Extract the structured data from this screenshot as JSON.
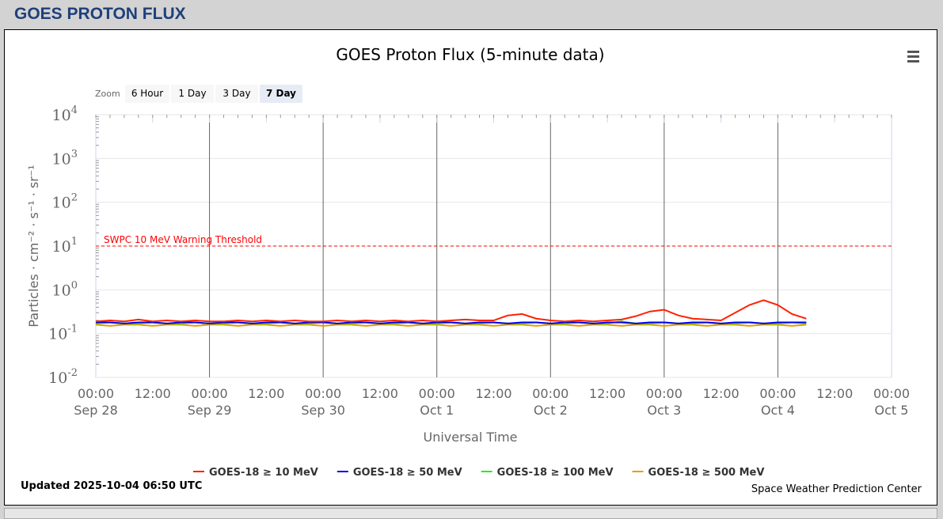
{
  "header": {
    "title": "GOES PROTON FLUX"
  },
  "zoom": {
    "label": "Zoom",
    "buttons": [
      "6 Hour",
      "1 Day",
      "3 Day",
      "7 Day"
    ],
    "selected": "7 Day"
  },
  "menu_icon": "hamburger-menu-icon",
  "footer": {
    "updated": "Updated 2025-10-04 06:50 UTC",
    "credit": "Space Weather Prediction Center"
  },
  "chart_data": {
    "type": "line",
    "title": "GOES Proton Flux (5-minute data)",
    "xlabel": "Universal Time",
    "ylabel": "Particles · cm⁻² · s⁻¹ · sr⁻¹",
    "yscale": "log",
    "ylim": [
      0.01,
      10000
    ],
    "xlim": [
      "2025-09-28 00:00",
      "2025-10-05 00:00"
    ],
    "yticks": [
      {
        "base": "10",
        "exp": "4"
      },
      {
        "base": "10",
        "exp": "3"
      },
      {
        "base": "10",
        "exp": "2"
      },
      {
        "base": "10",
        "exp": "1"
      },
      {
        "base": "10",
        "exp": "0"
      },
      {
        "base": "10",
        "exp": "-1"
      },
      {
        "base": "10",
        "exp": "-2"
      }
    ],
    "xticks": [
      [
        "00:00",
        "Sep 28"
      ],
      [
        "12:00",
        ""
      ],
      [
        "00:00",
        "Sep 29"
      ],
      [
        "12:00",
        ""
      ],
      [
        "00:00",
        "Sep 30"
      ],
      [
        "12:00",
        ""
      ],
      [
        "00:00",
        "Oct 1"
      ],
      [
        "12:00",
        ""
      ],
      [
        "00:00",
        "Oct 2"
      ],
      [
        "12:00",
        ""
      ],
      [
        "00:00",
        "Oct 3"
      ],
      [
        "12:00",
        ""
      ],
      [
        "00:00",
        "Oct 4"
      ],
      [
        "12:00",
        ""
      ],
      [
        "00:00",
        "Oct 5"
      ]
    ],
    "threshold": {
      "value": 10,
      "label": "SWPC 10 MeV Warning Threshold",
      "color": "#ff0000"
    },
    "grid": true,
    "legend": "bottom",
    "x_start": "2025-09-28 00:00",
    "x_step_hours": 3,
    "series": [
      {
        "name": "GOES-18 ≥ 10 MeV",
        "color": "#ff2200",
        "values": [
          0.19,
          0.2,
          0.19,
          0.21,
          0.19,
          0.2,
          0.19,
          0.2,
          0.19,
          0.19,
          0.2,
          0.19,
          0.2,
          0.19,
          0.2,
          0.19,
          0.19,
          0.2,
          0.19,
          0.2,
          0.19,
          0.2,
          0.19,
          0.2,
          0.19,
          0.2,
          0.21,
          0.2,
          0.2,
          0.26,
          0.28,
          0.22,
          0.2,
          0.19,
          0.2,
          0.19,
          0.2,
          0.21,
          0.25,
          0.32,
          0.35,
          0.26,
          0.22,
          0.21,
          0.2,
          0.3,
          0.45,
          0.58,
          0.45,
          0.28,
          0.22
        ]
      },
      {
        "name": "GOES-18 ≥ 50 MeV",
        "color": "#0000ee",
        "values": [
          0.18,
          0.18,
          0.17,
          0.18,
          0.18,
          0.17,
          0.18,
          0.18,
          0.17,
          0.18,
          0.18,
          0.17,
          0.18,
          0.18,
          0.17,
          0.18,
          0.18,
          0.17,
          0.18,
          0.18,
          0.17,
          0.18,
          0.18,
          0.17,
          0.18,
          0.18,
          0.17,
          0.18,
          0.18,
          0.17,
          0.18,
          0.18,
          0.17,
          0.18,
          0.18,
          0.17,
          0.18,
          0.18,
          0.17,
          0.18,
          0.18,
          0.17,
          0.18,
          0.18,
          0.17,
          0.18,
          0.18,
          0.17,
          0.18,
          0.18,
          0.18
        ]
      },
      {
        "name": "GOES-18 ≥ 100 MeV",
        "color": "#22ee22",
        "values": [
          0.17,
          0.18,
          0.17,
          0.17,
          0.18,
          0.17,
          0.17,
          0.18,
          0.17,
          0.17,
          0.18,
          0.17,
          0.17,
          0.18,
          0.17,
          0.17,
          0.18,
          0.17,
          0.17,
          0.18,
          0.17,
          0.17,
          0.18,
          0.17,
          0.17,
          0.18,
          0.17,
          0.17,
          0.18,
          0.17,
          0.17,
          0.18,
          0.17,
          0.17,
          0.18,
          0.17,
          0.17,
          0.19,
          0.17,
          0.17,
          0.18,
          0.17,
          0.17,
          0.18,
          0.17,
          0.17,
          0.18,
          0.17,
          0.17,
          0.18,
          0.17
        ]
      },
      {
        "name": "GOES-18 ≥ 500 MeV",
        "color": "#ee9900",
        "values": [
          0.16,
          0.15,
          0.16,
          0.16,
          0.15,
          0.16,
          0.16,
          0.15,
          0.16,
          0.16,
          0.15,
          0.16,
          0.16,
          0.15,
          0.16,
          0.16,
          0.15,
          0.16,
          0.16,
          0.15,
          0.16,
          0.16,
          0.15,
          0.16,
          0.16,
          0.15,
          0.16,
          0.16,
          0.15,
          0.16,
          0.16,
          0.15,
          0.16,
          0.16,
          0.15,
          0.16,
          0.16,
          0.15,
          0.16,
          0.16,
          0.15,
          0.16,
          0.16,
          0.15,
          0.16,
          0.16,
          0.15,
          0.16,
          0.16,
          0.15,
          0.16
        ]
      }
    ]
  }
}
